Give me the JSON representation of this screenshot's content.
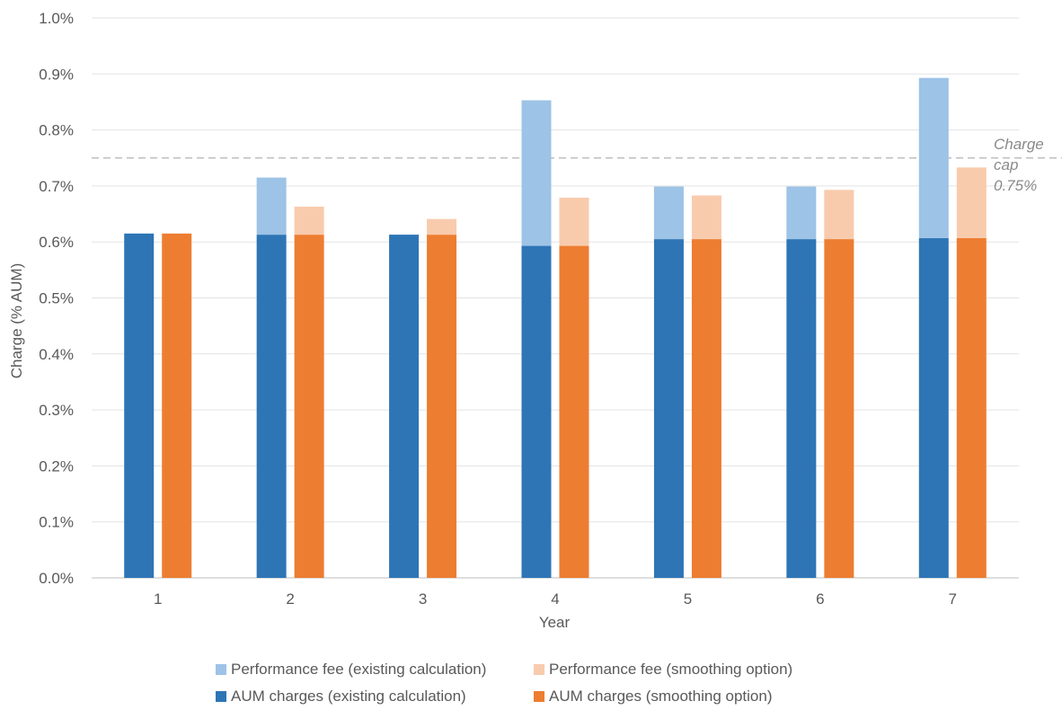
{
  "chart_data": {
    "type": "bar",
    "stacked": true,
    "categories": [
      "1",
      "2",
      "3",
      "4",
      "5",
      "6",
      "7"
    ],
    "xlabel": "Year",
    "ylabel": "Charge (% AUM)",
    "ylim": [
      0.0,
      1.0
    ],
    "yticks": [
      "0.0%",
      "0.1%",
      "0.2%",
      "0.3%",
      "0.4%",
      "0.5%",
      "0.6%",
      "0.7%",
      "0.8%",
      "0.9%",
      "1.0%"
    ],
    "grid": true,
    "legend_position": "bottom",
    "groups": [
      {
        "name": "existing calculation",
        "stack": [
          {
            "name": "AUM charges (existing calculation)",
            "color": "#2E75B6",
            "values": [
              0.615,
              0.613,
              0.613,
              0.593,
              0.605,
              0.605,
              0.607
            ]
          },
          {
            "name": "Performance fee (existing calculation)",
            "color": "#9DC3E6",
            "values": [
              0.0,
              0.102,
              0.0,
              0.26,
              0.094,
              0.094,
              0.286
            ]
          }
        ]
      },
      {
        "name": "smoothing option",
        "stack": [
          {
            "name": "AUM charges (smoothing option)",
            "color": "#ED7D31",
            "values": [
              0.615,
              0.613,
              0.613,
              0.593,
              0.605,
              0.605,
              0.607
            ]
          },
          {
            "name": "Performance fee (smoothing option)",
            "color": "#F8CBAD",
            "values": [
              0.0,
              0.05,
              0.028,
              0.086,
              0.078,
              0.088,
              0.126
            ]
          }
        ]
      }
    ],
    "reference_line": {
      "value": 0.75,
      "label_lines": [
        "Charge",
        "cap",
        "0.75%"
      ],
      "color": "#BFBFBF",
      "style": "dashed"
    }
  },
  "legend": {
    "rows": [
      [
        {
          "label": "Performance fee (existing calculation)",
          "color": "#9DC3E6"
        },
        {
          "label": "Performance fee (smoothing option)",
          "color": "#F8CBAD"
        }
      ],
      [
        {
          "label": "AUM charges (existing calculation)",
          "color": "#2E75B6"
        },
        {
          "label": "AUM charges (smoothing option)",
          "color": "#ED7D31"
        }
      ]
    ]
  }
}
